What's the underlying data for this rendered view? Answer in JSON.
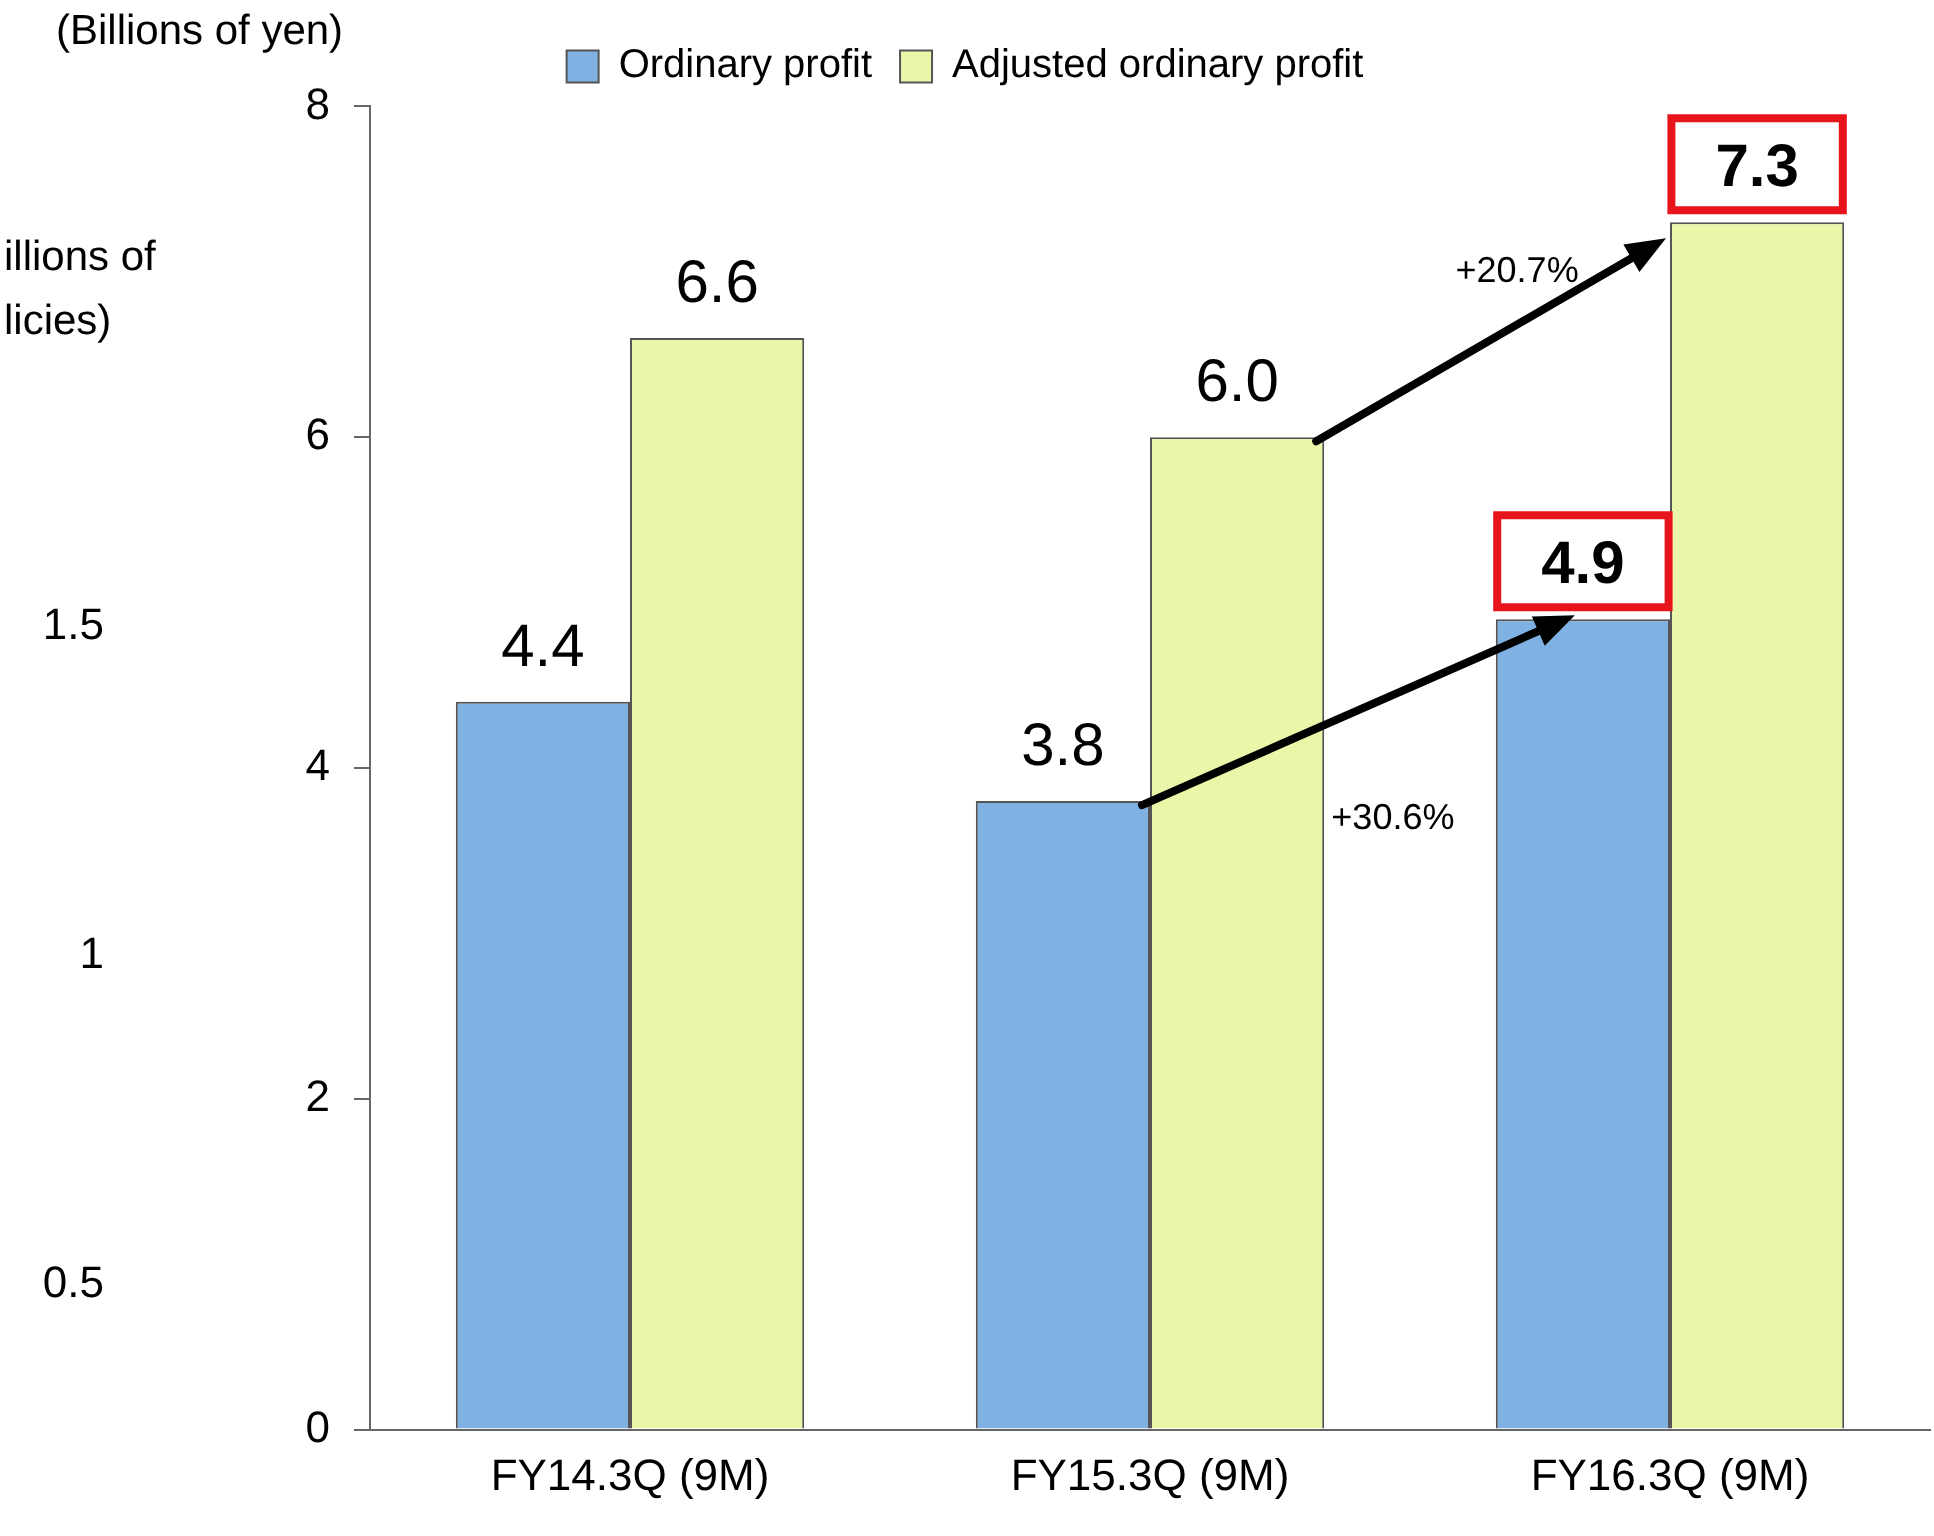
{
  "chart_data": {
    "type": "bar",
    "ylabel": "(Billions of yen)",
    "y2label": "illions of\nlicies)",
    "categories": [
      "FY14.3Q (9M)",
      "FY15.3Q (9M)",
      "FY16.3Q (9M)"
    ],
    "series": [
      {
        "name": "Ordinary profit",
        "color": "#7fb2e2",
        "values": [
          4.4,
          3.8,
          4.9
        ],
        "value_labels": [
          "4.4",
          "3.8",
          "4.9"
        ]
      },
      {
        "name": "Adjusted ordinary profit",
        "color": "#eaf7a8",
        "values": [
          6.6,
          6.0,
          7.3
        ],
        "value_labels": [
          "6.6",
          "6.0",
          "7.3"
        ]
      }
    ],
    "ylim": [
      0,
      8
    ],
    "yticks": [
      0,
      2,
      4,
      6,
      8
    ],
    "y2lim": [
      0.28,
      2.29
    ],
    "y2ticks": [
      0.5,
      1,
      1.5
    ],
    "legend": "top",
    "grid": false,
    "annotations": [
      "+20.7%",
      "+30.6%"
    ]
  }
}
